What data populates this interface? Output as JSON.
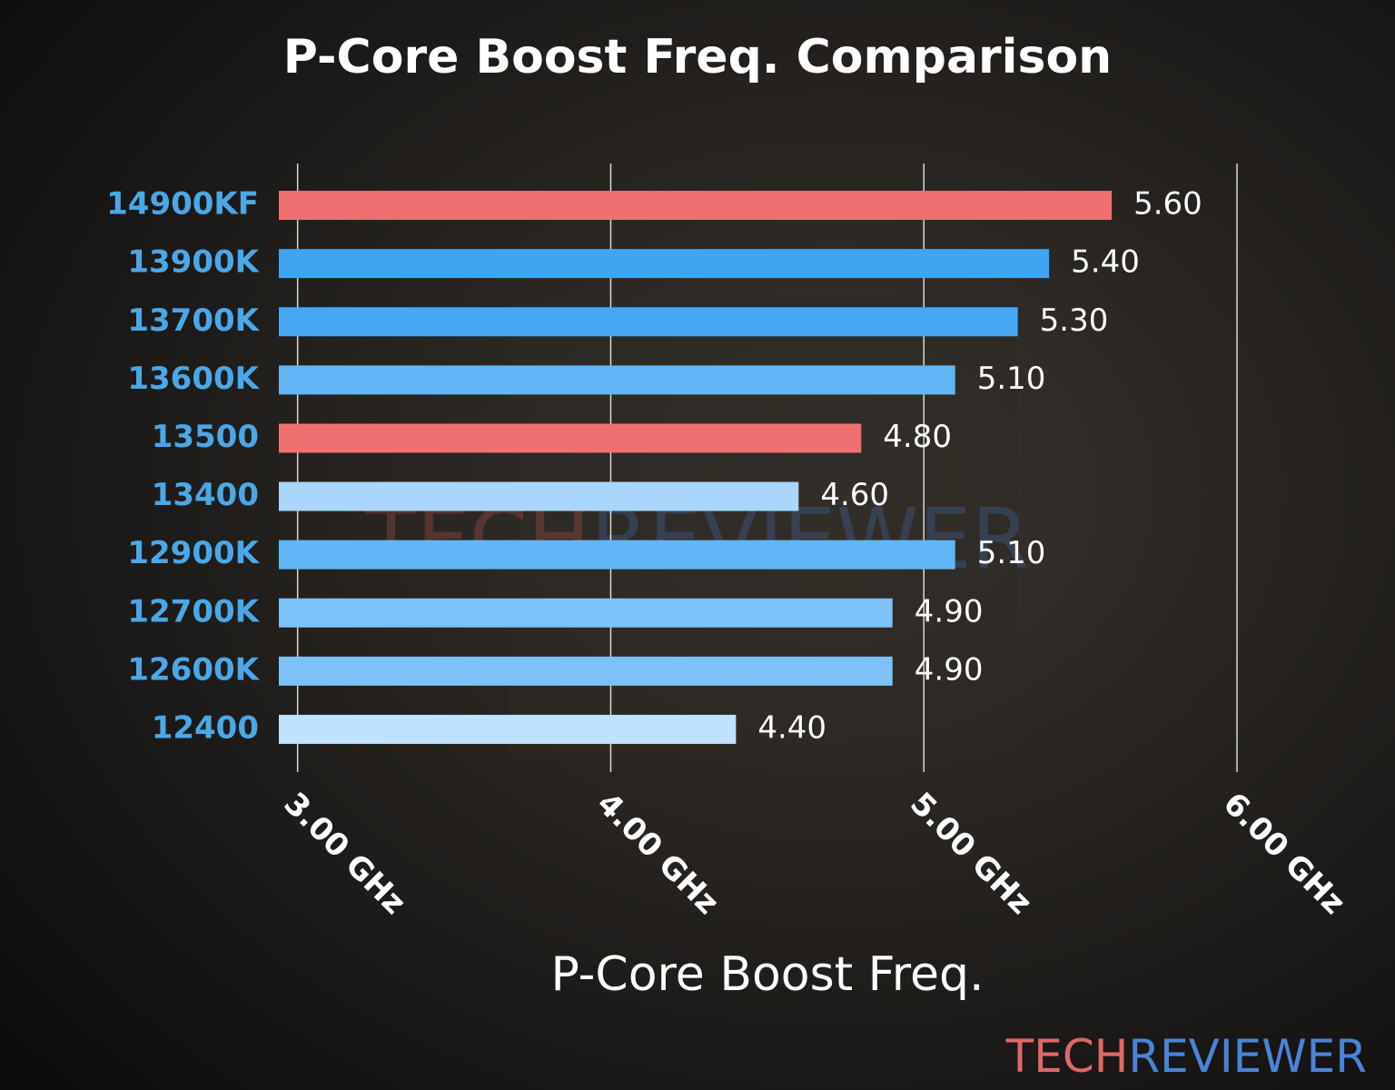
{
  "chart_data": {
    "type": "barh",
    "title": "P-Core Boost Freq. Comparison",
    "x_label": "P-Core Boost Freq.",
    "categories": [
      "14900KF",
      "13900K",
      "13700K",
      "13600K",
      "13500",
      "13400",
      "12900K",
      "12700K",
      "12600K",
      "12400"
    ],
    "values": [
      5.6,
      5.4,
      5.3,
      5.1,
      4.8,
      4.6,
      5.1,
      4.9,
      4.9,
      4.4
    ],
    "value_labels": [
      "5.60",
      "5.40",
      "5.30",
      "5.10",
      "4.80",
      "4.60",
      "5.10",
      "4.90",
      "4.90",
      "4.40"
    ],
    "colors": [
      "#f07070",
      "#3fa4f2",
      "#44a8f4",
      "#62b6f6",
      "#f07070",
      "#a8d6fc",
      "#62b6f6",
      "#7cc2f8",
      "#7cc2f8",
      "#bfe2fe"
    ],
    "xlim": [
      2.94,
      6.0
    ],
    "xticks": [
      {
        "value": 3,
        "label": "3.00 GHz"
      },
      {
        "value": 4,
        "label": "4.00 GHz"
      },
      {
        "value": 5,
        "label": "5.00 GHz"
      },
      {
        "value": 6,
        "label": "6.00 GHz"
      }
    ],
    "grid": true,
    "watermark": {
      "part1": "TECH",
      "part2": "REVIEWER"
    }
  }
}
